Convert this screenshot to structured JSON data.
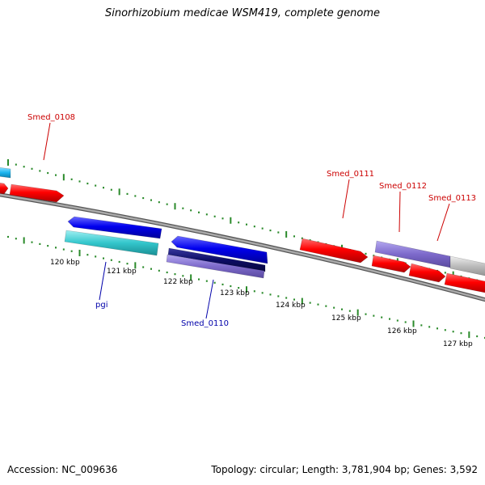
{
  "title": "Sinorhizobium medicae WSM419, complete genome",
  "footer": {
    "accession": "Accession: NC_009636",
    "summary": "Topology: circular; Length: 3,781,904 bp; Genes: 3,592"
  },
  "colors": {
    "forward_cds": "#ff0000",
    "reverse_cds": "#0000ee",
    "rna_gene": "#33c6cc",
    "feature_purple": "#7d6acb",
    "feature_navy": "#0d0d66",
    "unknown_gray": "#bbbbbb",
    "backbone": "#888888",
    "tick_green": "#2a8a2a",
    "label_forward": "#cc0000",
    "label_reverse": "#0000aa"
  },
  "ruler": {
    "labels": [
      "120 kbp",
      "121 kbp",
      "122 kbp",
      "123 kbp",
      "124 kbp",
      "125 kbp",
      "126 kbp",
      "127 kbp"
    ]
  },
  "gene_labels": {
    "smed_0108": "Smed_0108",
    "smed_0111": "Smed_0111",
    "smed_0112": "Smed_0112",
    "smed_0113": "Smed_0113",
    "pgi": "pgi",
    "smed_0110": "Smed_0110"
  }
}
